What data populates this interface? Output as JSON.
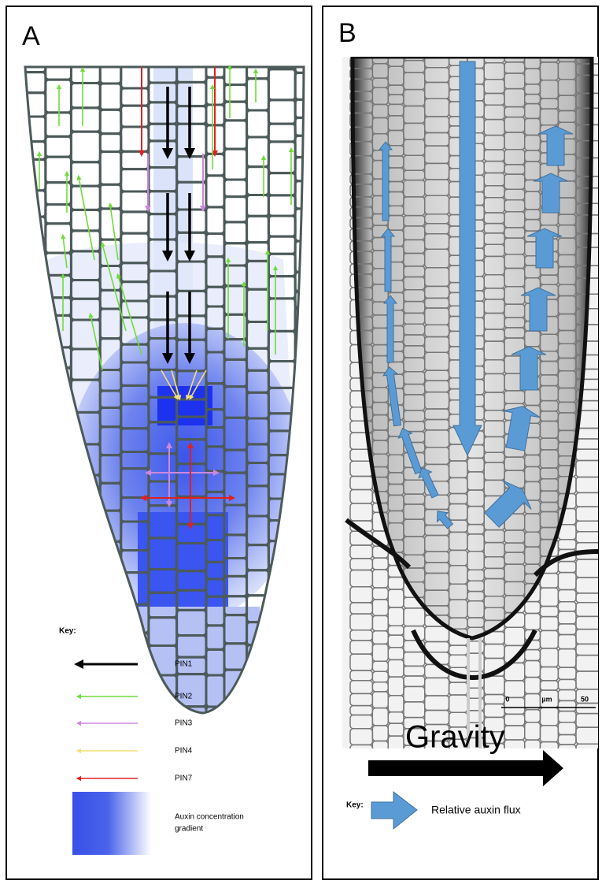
{
  "panels": [
    {
      "label": "A",
      "key": {
        "title": "Key:",
        "items": [
          "PIN1",
          "PIN2",
          "PIN3",
          "PIN4",
          "PIN7"
        ],
        "gradient_label": [
          "Auxin concentration",
          "gradient"
        ]
      }
    },
    {
      "label": "B",
      "scale_bar": {
        "start": 0,
        "unit": "µm",
        "end": 50
      },
      "direction": "Gravity",
      "key": {
        "title": "Key:",
        "items": [
          "Relative auxin flux"
        ]
      }
    }
  ]
}
